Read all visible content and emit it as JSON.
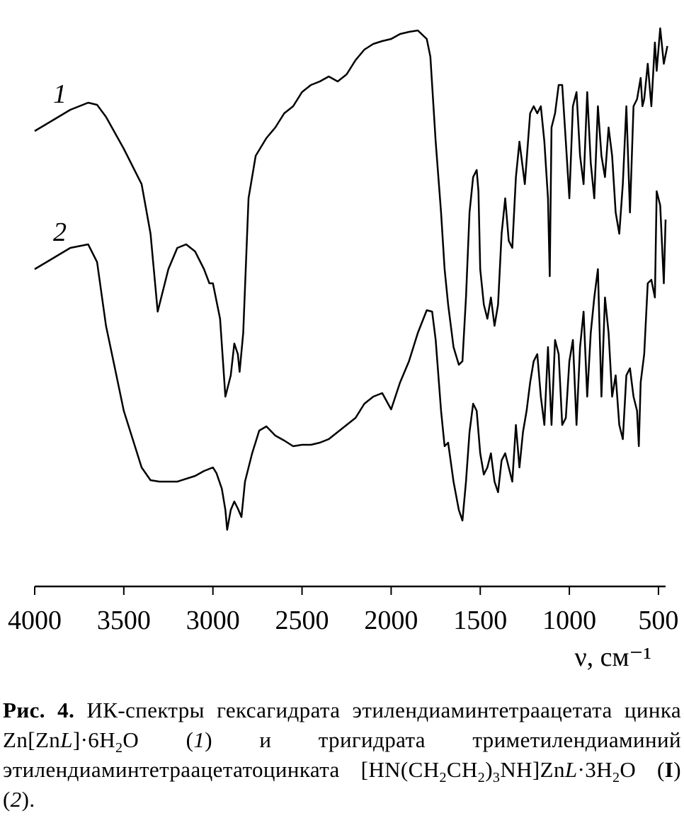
{
  "chart_data": {
    "type": "line",
    "xlabel": "ν, см⁻¹",
    "xlim": [
      4000,
      460
    ],
    "ylim": [
      0,
      800
    ],
    "xticks": [
      4000,
      3500,
      3000,
      2500,
      2000,
      1500,
      1000,
      500
    ],
    "series": [
      {
        "name": "1",
        "color": "#000000",
        "x": [
          4000,
          3900,
          3800,
          3700,
          3650,
          3600,
          3500,
          3400,
          3350,
          3310,
          3250,
          3200,
          3150,
          3100,
          3050,
          3020,
          3000,
          2960,
          2930,
          2900,
          2880,
          2860,
          2850,
          2830,
          2800,
          2760,
          2700,
          2650,
          2600,
          2550,
          2500,
          2450,
          2400,
          2350,
          2300,
          2250,
          2200,
          2150,
          2100,
          2050,
          2000,
          1950,
          1900,
          1850,
          1800,
          1780,
          1750,
          1720,
          1700,
          1680,
          1650,
          1620,
          1600,
          1580,
          1560,
          1540,
          1520,
          1510,
          1500,
          1480,
          1460,
          1440,
          1420,
          1400,
          1380,
          1360,
          1340,
          1320,
          1300,
          1280,
          1250,
          1220,
          1200,
          1180,
          1160,
          1140,
          1120,
          1110,
          1100,
          1080,
          1060,
          1040,
          1020,
          1000,
          980,
          960,
          940,
          920,
          900,
          880,
          860,
          840,
          820,
          800,
          780,
          760,
          740,
          720,
          700,
          680,
          660,
          640,
          620,
          600,
          590,
          580,
          560,
          540,
          520,
          510,
          490,
          470,
          450
        ],
        "values": [
          643,
          658,
          673,
          683,
          680,
          663,
          618,
          568,
          498,
          388,
          448,
          478,
          483,
          473,
          448,
          428,
          428,
          378,
          268,
          298,
          343,
          328,
          303,
          358,
          548,
          608,
          633,
          648,
          668,
          678,
          698,
          708,
          713,
          720,
          713,
          723,
          743,
          758,
          766,
          770,
          773,
          780,
          783,
          785,
          773,
          748,
          628,
          528,
          448,
          398,
          338,
          313,
          318,
          408,
          528,
          578,
          588,
          558,
          448,
          398,
          378,
          408,
          368,
          398,
          498,
          548,
          488,
          478,
          578,
          628,
          568,
          668,
          678,
          668,
          678,
          628,
          548,
          438,
          648,
          668,
          708,
          708,
          628,
          548,
          678,
          698,
          608,
          568,
          698,
          598,
          548,
          678,
          608,
          578,
          648,
          608,
          528,
          498,
          568,
          678,
          528,
          678,
          688,
          718,
          678,
          688,
          738,
          678,
          768,
          728,
          788,
          738,
          763
        ]
      },
      {
        "name": "2",
        "color": "#000000",
        "x": [
          4000,
          3900,
          3800,
          3700,
          3650,
          3600,
          3550,
          3500,
          3450,
          3400,
          3350,
          3300,
          3200,
          3100,
          3050,
          3000,
          2980,
          2950,
          2930,
          2920,
          2900,
          2880,
          2860,
          2840,
          2820,
          2780,
          2740,
          2700,
          2650,
          2600,
          2550,
          2500,
          2450,
          2400,
          2350,
          2300,
          2250,
          2200,
          2150,
          2100,
          2050,
          2000,
          1950,
          1900,
          1850,
          1800,
          1770,
          1750,
          1720,
          1700,
          1680,
          1650,
          1620,
          1600,
          1580,
          1560,
          1540,
          1520,
          1500,
          1480,
          1460,
          1440,
          1420,
          1400,
          1380,
          1360,
          1340,
          1320,
          1300,
          1280,
          1260,
          1240,
          1220,
          1200,
          1180,
          1160,
          1140,
          1120,
          1100,
          1080,
          1060,
          1040,
          1020,
          1000,
          980,
          960,
          940,
          920,
          900,
          880,
          860,
          840,
          820,
          800,
          780,
          760,
          740,
          720,
          700,
          680,
          660,
          640,
          620,
          610,
          600,
          580,
          560,
          540,
          520,
          510,
          490,
          470,
          460
        ],
        "values": [
          448,
          463,
          478,
          483,
          458,
          368,
          308,
          248,
          208,
          168,
          150,
          148,
          148,
          156,
          163,
          168,
          160,
          138,
          108,
          80,
          108,
          120,
          110,
          98,
          148,
          188,
          220,
          226,
          213,
          206,
          198,
          200,
          200,
          203,
          208,
          218,
          228,
          238,
          258,
          268,
          273,
          250,
          288,
          318,
          358,
          390,
          388,
          348,
          248,
          198,
          203,
          148,
          108,
          93,
          148,
          218,
          258,
          248,
          188,
          158,
          168,
          188,
          148,
          133,
          178,
          188,
          168,
          148,
          228,
          168,
          218,
          248,
          288,
          318,
          328,
          268,
          228,
          338,
          228,
          348,
          328,
          228,
          238,
          318,
          348,
          228,
          338,
          388,
          268,
          358,
          408,
          448,
          268,
          408,
          358,
          268,
          298,
          228,
          208,
          298,
          308,
          268,
          248,
          198,
          288,
          328,
          428,
          433,
          408,
          558,
          538,
          428,
          518
        ]
      }
    ]
  },
  "caption": {
    "label": "Рис. 4.",
    "parts": [
      " ИК-спектры гексагидрата этилендиаминтетраацетата цинка Zn[Zn",
      "L",
      "]·6H",
      "2",
      "O (",
      "1",
      ") и тригидрата триметилендиаминий этилендиаминтетраацетатоцинката [HN(CH",
      "2",
      "CH",
      "2",
      ")",
      "3",
      "NH]Zn",
      "L",
      "·3H",
      "2",
      "O (",
      "I",
      ") (",
      "2",
      ")."
    ]
  }
}
